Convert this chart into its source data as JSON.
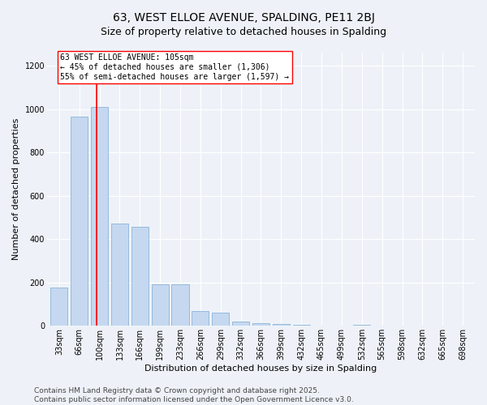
{
  "title": "63, WEST ELLOE AVENUE, SPALDING, PE11 2BJ",
  "subtitle": "Size of property relative to detached houses in Spalding",
  "xlabel": "Distribution of detached houses by size in Spalding",
  "ylabel": "Number of detached properties",
  "categories": [
    "33sqm",
    "66sqm",
    "100sqm",
    "133sqm",
    "166sqm",
    "199sqm",
    "233sqm",
    "266sqm",
    "299sqm",
    "332sqm",
    "366sqm",
    "399sqm",
    "432sqm",
    "465sqm",
    "499sqm",
    "532sqm",
    "565sqm",
    "598sqm",
    "632sqm",
    "665sqm",
    "698sqm"
  ],
  "bar_values": [
    175,
    965,
    1010,
    470,
    455,
    190,
    190,
    70,
    62,
    18,
    14,
    10,
    4,
    0,
    0,
    4,
    0,
    0,
    0,
    0,
    0
  ],
  "bar_color": "#c5d8f0",
  "bar_edge_color": "#8ab4d8",
  "property_line_color": "red",
  "annotation_text": "63 WEST ELLOE AVENUE: 105sqm\n← 45% of detached houses are smaller (1,306)\n55% of semi-detached houses are larger (1,597) →",
  "annotation_box_color": "white",
  "annotation_box_edge": "red",
  "ylim": [
    0,
    1260
  ],
  "yticks": [
    0,
    200,
    400,
    600,
    800,
    1000,
    1200
  ],
  "footer1": "Contains HM Land Registry data © Crown copyright and database right 2025.",
  "footer2": "Contains public sector information licensed under the Open Government Licence v3.0.",
  "bg_color": "#eef2f8",
  "grid_color": "white",
  "title_fontsize": 10,
  "subtitle_fontsize": 9,
  "label_fontsize": 8,
  "tick_fontsize": 7,
  "footer_fontsize": 6.5,
  "annotation_fontsize": 7
}
